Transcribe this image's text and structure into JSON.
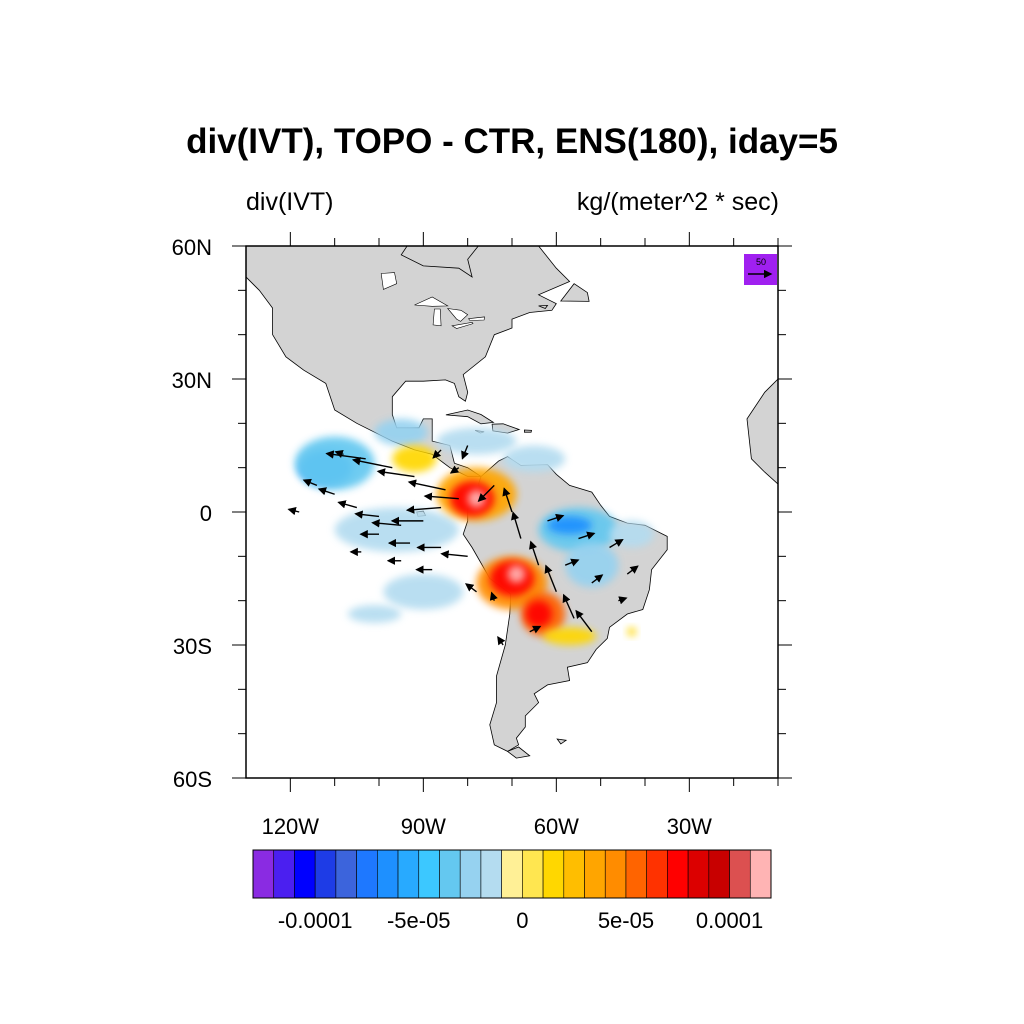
{
  "title": "div(IVT), TOPO - CTR, ENS(180), iday=5",
  "subtitle_left": "div(IVT)",
  "subtitle_right": "kg/(meter^2 * sec)",
  "map": {
    "lon_range": [
      -130,
      -10
    ],
    "lat_range": [
      -60,
      60
    ],
    "lat_ticks": [
      {
        "value": 60,
        "label": "60N"
      },
      {
        "value": 30,
        "label": "30N"
      },
      {
        "value": 0,
        "label": "0"
      },
      {
        "value": -30,
        "label": "30S"
      },
      {
        "value": -60,
        "label": "60S"
      }
    ],
    "lon_ticks": [
      {
        "value": -120,
        "label": "120W"
      },
      {
        "value": -90,
        "label": "90W"
      },
      {
        "value": -60,
        "label": "60W"
      },
      {
        "value": -30,
        "label": "30W"
      }
    ],
    "land_color": "#d3d3d3",
    "reference_vector": {
      "label": "50",
      "color": "#a020f0"
    }
  },
  "colorbar": {
    "colors": [
      "#8a2be2",
      "#4b1ff0",
      "#0000ff",
      "#1e3ce6",
      "#3c64dc",
      "#1e78ff",
      "#1e90ff",
      "#28aaff",
      "#3cc8ff",
      "#64c8f0",
      "#96d2f0",
      "#b4dcf0",
      "#fff096",
      "#ffe650",
      "#ffd700",
      "#ffbe00",
      "#ffa500",
      "#ff8c00",
      "#ff6400",
      "#ff3200",
      "#ff0000",
      "#dc0000",
      "#c80000",
      "#dc5050",
      "#ffb4b4"
    ],
    "labels": [
      {
        "text": "-0.0001",
        "boundary": 3
      },
      {
        "text": "-5e-05",
        "boundary": 8
      },
      {
        "text": "0",
        "boundary": 13
      },
      {
        "text": "5e-05",
        "boundary": 18
      },
      {
        "text": "0.0001",
        "boundary": 23
      }
    ]
  },
  "fields": {
    "divergence_blobs": [
      {
        "lon": -112,
        "lat": 10,
        "rx": 6,
        "ry": 4,
        "color": "#1e90ff"
      },
      {
        "lon": -110,
        "lat": 11,
        "rx": 9,
        "ry": 6,
        "color": "#64c8f0"
      },
      {
        "lon": -95,
        "lat": 18,
        "rx": 6,
        "ry": 3,
        "color": "#96d2f0"
      },
      {
        "lon": -78,
        "lat": 16,
        "rx": 9,
        "ry": 3,
        "color": "#b4dcf0"
      },
      {
        "lon": -65,
        "lat": 12,
        "rx": 7,
        "ry": 3,
        "color": "#b4dcf0"
      },
      {
        "lon": -96,
        "lat": -4,
        "rx": 14,
        "ry": 5,
        "color": "#b4dcf0"
      },
      {
        "lon": -90,
        "lat": -18,
        "rx": 9,
        "ry": 4,
        "color": "#b4dcf0"
      },
      {
        "lon": -101,
        "lat": -23,
        "rx": 6,
        "ry": 2,
        "color": "#b4dcf0"
      },
      {
        "lon": -55,
        "lat": -4,
        "rx": 9,
        "ry": 5,
        "color": "#64c8f0"
      },
      {
        "lon": -57,
        "lat": -3,
        "rx": 5,
        "ry": 2,
        "color": "#1e90ff"
      },
      {
        "lon": -52,
        "lat": -12,
        "rx": 6,
        "ry": 5,
        "color": "#96d2f0"
      },
      {
        "lon": -43,
        "lat": -5,
        "rx": 5,
        "ry": 3,
        "color": "#b4dcf0"
      },
      {
        "lon": -92,
        "lat": 12,
        "rx": 5,
        "ry": 3,
        "color": "#ffd700"
      },
      {
        "lon": -78,
        "lat": 4,
        "rx": 9,
        "ry": 6,
        "color": "#ffa500"
      },
      {
        "lon": -79,
        "lat": 3,
        "rx": 5,
        "ry": 4,
        "color": "#ff0000"
      },
      {
        "lon": -78,
        "lat": 3,
        "rx": 2,
        "ry": 2,
        "color": "#ffb4b4"
      },
      {
        "lon": -70,
        "lat": -16,
        "rx": 8,
        "ry": 6,
        "color": "#ff8c00"
      },
      {
        "lon": -70,
        "lat": -15,
        "rx": 5,
        "ry": 4,
        "color": "#ff0000"
      },
      {
        "lon": -69,
        "lat": -14,
        "rx": 2,
        "ry": 2,
        "color": "#ffb4b4"
      },
      {
        "lon": -63,
        "lat": -23,
        "rx": 5,
        "ry": 5,
        "color": "#ff6400"
      },
      {
        "lon": -64,
        "lat": -23,
        "rx": 3,
        "ry": 3,
        "color": "#ff0000"
      },
      {
        "lon": -57,
        "lat": -28,
        "rx": 6,
        "ry": 2,
        "color": "#ffd700"
      },
      {
        "lon": -43,
        "lat": -27,
        "rx": 1,
        "ry": 1,
        "color": "#ffd700"
      }
    ],
    "vectors": [
      {
        "lon": -103,
        "lat": 12,
        "u": -15,
        "v": 2
      },
      {
        "lon": -97,
        "lat": 10,
        "u": -15,
        "v": 3
      },
      {
        "lon": -92,
        "lat": 8,
        "u": -14,
        "v": 2
      },
      {
        "lon": -85,
        "lat": 5,
        "u": -14,
        "v": 3
      },
      {
        "lon": -82,
        "lat": 3,
        "u": -13,
        "v": 1
      },
      {
        "lon": -86,
        "lat": 1,
        "u": -13,
        "v": -1
      },
      {
        "lon": -90,
        "lat": -2,
        "u": -12,
        "v": 0
      },
      {
        "lon": -95,
        "lat": -3,
        "u": -11,
        "v": 1
      },
      {
        "lon": -100,
        "lat": -1,
        "u": -9,
        "v": 1
      },
      {
        "lon": -105,
        "lat": 1,
        "u": -7,
        "v": 2
      },
      {
        "lon": -110,
        "lat": 4,
        "u": -6,
        "v": 2
      },
      {
        "lon": -114,
        "lat": 6,
        "u": -5,
        "v": 2
      },
      {
        "lon": -118,
        "lat": 0,
        "u": -4,
        "v": 1
      },
      {
        "lon": -100,
        "lat": -5,
        "u": -7,
        "v": 0
      },
      {
        "lon": -93,
        "lat": -7,
        "u": -8,
        "v": 0
      },
      {
        "lon": -86,
        "lat": -8,
        "u": -9,
        "v": 0
      },
      {
        "lon": -80,
        "lat": -10,
        "u": -10,
        "v": 1
      },
      {
        "lon": -88,
        "lat": -13,
        "u": -6,
        "v": 0
      },
      {
        "lon": -95,
        "lat": -11,
        "u": -5,
        "v": 0
      },
      {
        "lon": -104,
        "lat": -9,
        "u": -4,
        "v": 0
      },
      {
        "lon": -74,
        "lat": 6,
        "u": -6,
        "v": -6
      },
      {
        "lon": -70,
        "lat": 0,
        "u": -3,
        "v": 9
      },
      {
        "lon": -68,
        "lat": -6,
        "u": -3,
        "v": 10
      },
      {
        "lon": -64,
        "lat": -12,
        "u": -3,
        "v": 9
      },
      {
        "lon": -60,
        "lat": -18,
        "u": -4,
        "v": 10
      },
      {
        "lon": -56,
        "lat": -24,
        "u": -4,
        "v": 9
      },
      {
        "lon": -52,
        "lat": -27,
        "u": -6,
        "v": 8
      },
      {
        "lon": -62,
        "lat": -2,
        "u": 6,
        "v": 2
      },
      {
        "lon": -55,
        "lat": -6,
        "u": 6,
        "v": 2
      },
      {
        "lon": -48,
        "lat": -8,
        "u": 5,
        "v": 3
      },
      {
        "lon": -58,
        "lat": -12,
        "u": 5,
        "v": 2
      },
      {
        "lon": -52,
        "lat": -16,
        "u": 4,
        "v": 3
      },
      {
        "lon": -46,
        "lat": -20,
        "u": 3,
        "v": 1
      },
      {
        "lon": -44,
        "lat": -14,
        "u": 4,
        "v": 3
      },
      {
        "lon": -66,
        "lat": -27,
        "u": 4,
        "v": 2
      },
      {
        "lon": -74,
        "lat": -20,
        "u": -1,
        "v": 3
      },
      {
        "lon": -78,
        "lat": -18,
        "u": -4,
        "v": 3
      },
      {
        "lon": -72,
        "lat": -30,
        "u": -2,
        "v": 3
      },
      {
        "lon": -80,
        "lat": 15,
        "u": -2,
        "v": -5
      },
      {
        "lon": -86,
        "lat": 14,
        "u": -3,
        "v": -3
      },
      {
        "lon": -108,
        "lat": 13,
        "u": -3,
        "v": 1
      },
      {
        "lon": -82,
        "lat": 10,
        "u": -3,
        "v": -2
      }
    ]
  },
  "land": {
    "north_america": [
      [
        -168,
        66
      ],
      [
        -164,
        60
      ],
      [
        -152,
        59
      ],
      [
        -141,
        60
      ],
      [
        -133,
        56
      ],
      [
        -127,
        50
      ],
      [
        -124,
        46
      ],
      [
        -124,
        40
      ],
      [
        -121,
        35
      ],
      [
        -117,
        32
      ],
      [
        -112,
        29
      ],
      [
        -110,
        23
      ],
      [
        -105,
        20
      ],
      [
        -97,
        16
      ],
      [
        -92,
        14
      ],
      [
        -88,
        13
      ],
      [
        -84,
        10
      ],
      [
        -80,
        8
      ],
      [
        -77,
        8
      ],
      [
        -80,
        10
      ],
      [
        -83,
        11
      ],
      [
        -84,
        15
      ],
      [
        -88,
        16
      ],
      [
        -88,
        21
      ],
      [
        -90,
        21
      ],
      [
        -91,
        19
      ],
      [
        -96,
        19
      ],
      [
        -97,
        22
      ],
      [
        -97,
        26
      ],
      [
        -94,
        29.5
      ],
      [
        -90,
        29.5
      ],
      [
        -85,
        29.8
      ],
      [
        -83,
        29
      ],
      [
        -82,
        26
      ],
      [
        -80.5,
        25
      ],
      [
        -80,
        27
      ],
      [
        -81,
        31
      ],
      [
        -76,
        35
      ],
      [
        -74,
        40
      ],
      [
        -70,
        41.5
      ],
      [
        -70,
        43.5
      ],
      [
        -66,
        45
      ],
      [
        -61,
        45.5
      ],
      [
        -60,
        47
      ],
      [
        -64,
        49
      ],
      [
        -57,
        52
      ],
      [
        -60,
        55
      ],
      [
        -64,
        60
      ],
      [
        -70,
        61
      ],
      [
        -78,
        62.5
      ],
      [
        -92,
        62.5
      ],
      [
        -95,
        58
      ],
      [
        -90,
        55.5
      ],
      [
        -82,
        55
      ],
      [
        -79,
        53
      ],
      [
        -80,
        57
      ],
      [
        -76,
        62
      ],
      [
        -68,
        66
      ],
      [
        -100,
        68
      ],
      [
        -140,
        70
      ],
      [
        -168,
        66
      ]
    ],
    "south_america": [
      [
        -77,
        8
      ],
      [
        -73,
        11.5
      ],
      [
        -71,
        12.5
      ],
      [
        -68,
        10.5
      ],
      [
        -62,
        10.7
      ],
      [
        -60,
        8.5
      ],
      [
        -57,
        6
      ],
      [
        -52,
        4.5
      ],
      [
        -50,
        1.5
      ],
      [
        -48,
        -1
      ],
      [
        -44,
        -2.5
      ],
      [
        -40,
        -3
      ],
      [
        -35,
        -5.5
      ],
      [
        -35,
        -8.5
      ],
      [
        -38.5,
        -13
      ],
      [
        -39,
        -17.5
      ],
      [
        -40.5,
        -22
      ],
      [
        -44,
        -23
      ],
      [
        -48,
        -26
      ],
      [
        -48.5,
        -28.5
      ],
      [
        -51,
        -31
      ],
      [
        -53,
        -34
      ],
      [
        -57.5,
        -35
      ],
      [
        -57,
        -38
      ],
      [
        -62,
        -39
      ],
      [
        -65,
        -41
      ],
      [
        -64,
        -43
      ],
      [
        -67,
        -46
      ],
      [
        -67,
        -48.5
      ],
      [
        -69,
        -51
      ],
      [
        -68.5,
        -52.5
      ],
      [
        -71,
        -54
      ],
      [
        -74,
        -52.5
      ],
      [
        -75,
        -48
      ],
      [
        -73.5,
        -43
      ],
      [
        -73.5,
        -37
      ],
      [
        -71.5,
        -30
      ],
      [
        -70.5,
        -23
      ],
      [
        -70.3,
        -18.5
      ],
      [
        -75,
        -15
      ],
      [
        -79,
        -8
      ],
      [
        -81,
        -5
      ],
      [
        -80,
        -2
      ],
      [
        -80,
        1
      ],
      [
        -78.5,
        2.5
      ],
      [
        -77.3,
        4
      ],
      [
        -77.5,
        6.5
      ],
      [
        -77,
        8
      ]
    ],
    "greenland": [
      [
        -73,
        78
      ],
      [
        -58,
        82
      ],
      [
        -30,
        83
      ],
      [
        -20,
        80
      ],
      [
        -22,
        72
      ],
      [
        -28,
        68
      ],
      [
        -36,
        65.5
      ],
      [
        -42,
        60.5
      ],
      [
        -49,
        61
      ],
      [
        -53,
        66
      ],
      [
        -55,
        70
      ],
      [
        -60,
        75
      ],
      [
        -73,
        78
      ]
    ],
    "baffin": [
      [
        -80,
        63
      ],
      [
        -78,
        67
      ],
      [
        -85,
        70
      ],
      [
        -76,
        72
      ],
      [
        -68,
        70
      ],
      [
        -64,
        66
      ],
      [
        -68,
        63
      ],
      [
        -72,
        62.5
      ],
      [
        -80,
        63
      ]
    ],
    "africa": [
      [
        -17,
        21
      ],
      [
        -16,
        12
      ],
      [
        -13,
        9
      ],
      [
        -8,
        4.5
      ],
      [
        0,
        5
      ],
      [
        10,
        4
      ],
      [
        10,
        30
      ],
      [
        -10,
        30
      ],
      [
        -13,
        27
      ],
      [
        -17,
        21
      ]
    ],
    "islands": [
      [
        [
          -84.9,
          21.9
        ],
        [
          -80,
          23
        ],
        [
          -77,
          22
        ],
        [
          -74.2,
          20.2
        ],
        [
          -77,
          19.9
        ],
        [
          -80,
          21.5
        ],
        [
          -84.9,
          21.9
        ]
      ],
      [
        [
          -74.5,
          19.8
        ],
        [
          -72,
          19.9
        ],
        [
          -68.4,
          18.6
        ],
        [
          -71,
          17.8
        ],
        [
          -74.3,
          18.3
        ],
        [
          -74.5,
          19.8
        ]
      ],
      [
        [
          -67.2,
          18.5
        ],
        [
          -65.6,
          18.4
        ],
        [
          -65.7,
          18
        ],
        [
          -67.2,
          18
        ]
      ],
      [
        [
          -78.3,
          18.4
        ],
        [
          -76.3,
          18.1
        ],
        [
          -77.1,
          17.8
        ],
        [
          -78.3,
          18.4
        ]
      ],
      [
        [
          -64,
          46.5
        ],
        [
          -62,
          46.6
        ],
        [
          -62.5,
          45.9
        ],
        [
          -64,
          46.5
        ]
      ],
      [
        [
          -59,
          47.6
        ],
        [
          -56,
          51.5
        ],
        [
          -53,
          49.5
        ],
        [
          -52.6,
          47.5
        ],
        [
          -59,
          47.6
        ]
      ],
      [
        [
          -59.8,
          -51.2
        ],
        [
          -57.8,
          -51.5
        ],
        [
          -59,
          -52.3
        ],
        [
          -59.8,
          -51.2
        ]
      ],
      [
        [
          -68.5,
          -53
        ],
        [
          -66,
          -55
        ],
        [
          -69,
          -55.5
        ],
        [
          -71,
          -54
        ],
        [
          -68.5,
          -53
        ]
      ],
      [
        [
          -91.5,
          0
        ],
        [
          -90,
          0.2
        ],
        [
          -89.5,
          -0.8
        ],
        [
          -91.2,
          -1
        ],
        [
          -91.5,
          0
        ]
      ]
    ],
    "lakes": [
      [
        [
          -92,
          46.7
        ],
        [
          -88,
          48.5
        ],
        [
          -84.5,
          46.5
        ],
        [
          -88,
          46.4
        ],
        [
          -92,
          46.7
        ]
      ],
      [
        [
          -87.5,
          45.8
        ],
        [
          -86.2,
          45.8
        ],
        [
          -86,
          42
        ],
        [
          -87.8,
          42.2
        ],
        [
          -87.5,
          45.8
        ]
      ],
      [
        [
          -84.5,
          45.9
        ],
        [
          -81.5,
          45.5
        ],
        [
          -80,
          44.5
        ],
        [
          -81.6,
          43
        ],
        [
          -82.5,
          43.5
        ],
        [
          -84.5,
          45.9
        ]
      ],
      [
        [
          -83.5,
          42
        ],
        [
          -79,
          42.8
        ],
        [
          -78.8,
          42.5
        ],
        [
          -82.5,
          41.4
        ],
        [
          -83.5,
          42
        ]
      ],
      [
        [
          -79.8,
          43.6
        ],
        [
          -76.2,
          44
        ],
        [
          -76.3,
          43.3
        ],
        [
          -79.5,
          43.2
        ],
        [
          -79.8,
          43.6
        ]
      ],
      [
        [
          -99.5,
          53.8
        ],
        [
          -96.5,
          54
        ],
        [
          -96,
          51.5
        ],
        [
          -99,
          50.2
        ],
        [
          -99.5,
          53.8
        ]
      ],
      [
        [
          -113,
          63.8
        ],
        [
          -110,
          62.5
        ],
        [
          -114,
          61
        ],
        [
          -116,
          62
        ],
        [
          -113,
          63.8
        ]
      ],
      [
        [
          -125,
          66.5
        ],
        [
          -119,
          67
        ],
        [
          -118,
          65
        ],
        [
          -123,
          65
        ],
        [
          -125,
          66.5
        ]
      ],
      [
        [
          -69.8,
          -15.3
        ],
        [
          -68.7,
          -15.5
        ],
        [
          -69,
          -16.5
        ],
        [
          -69.8,
          -15.3
        ]
      ]
    ]
  }
}
